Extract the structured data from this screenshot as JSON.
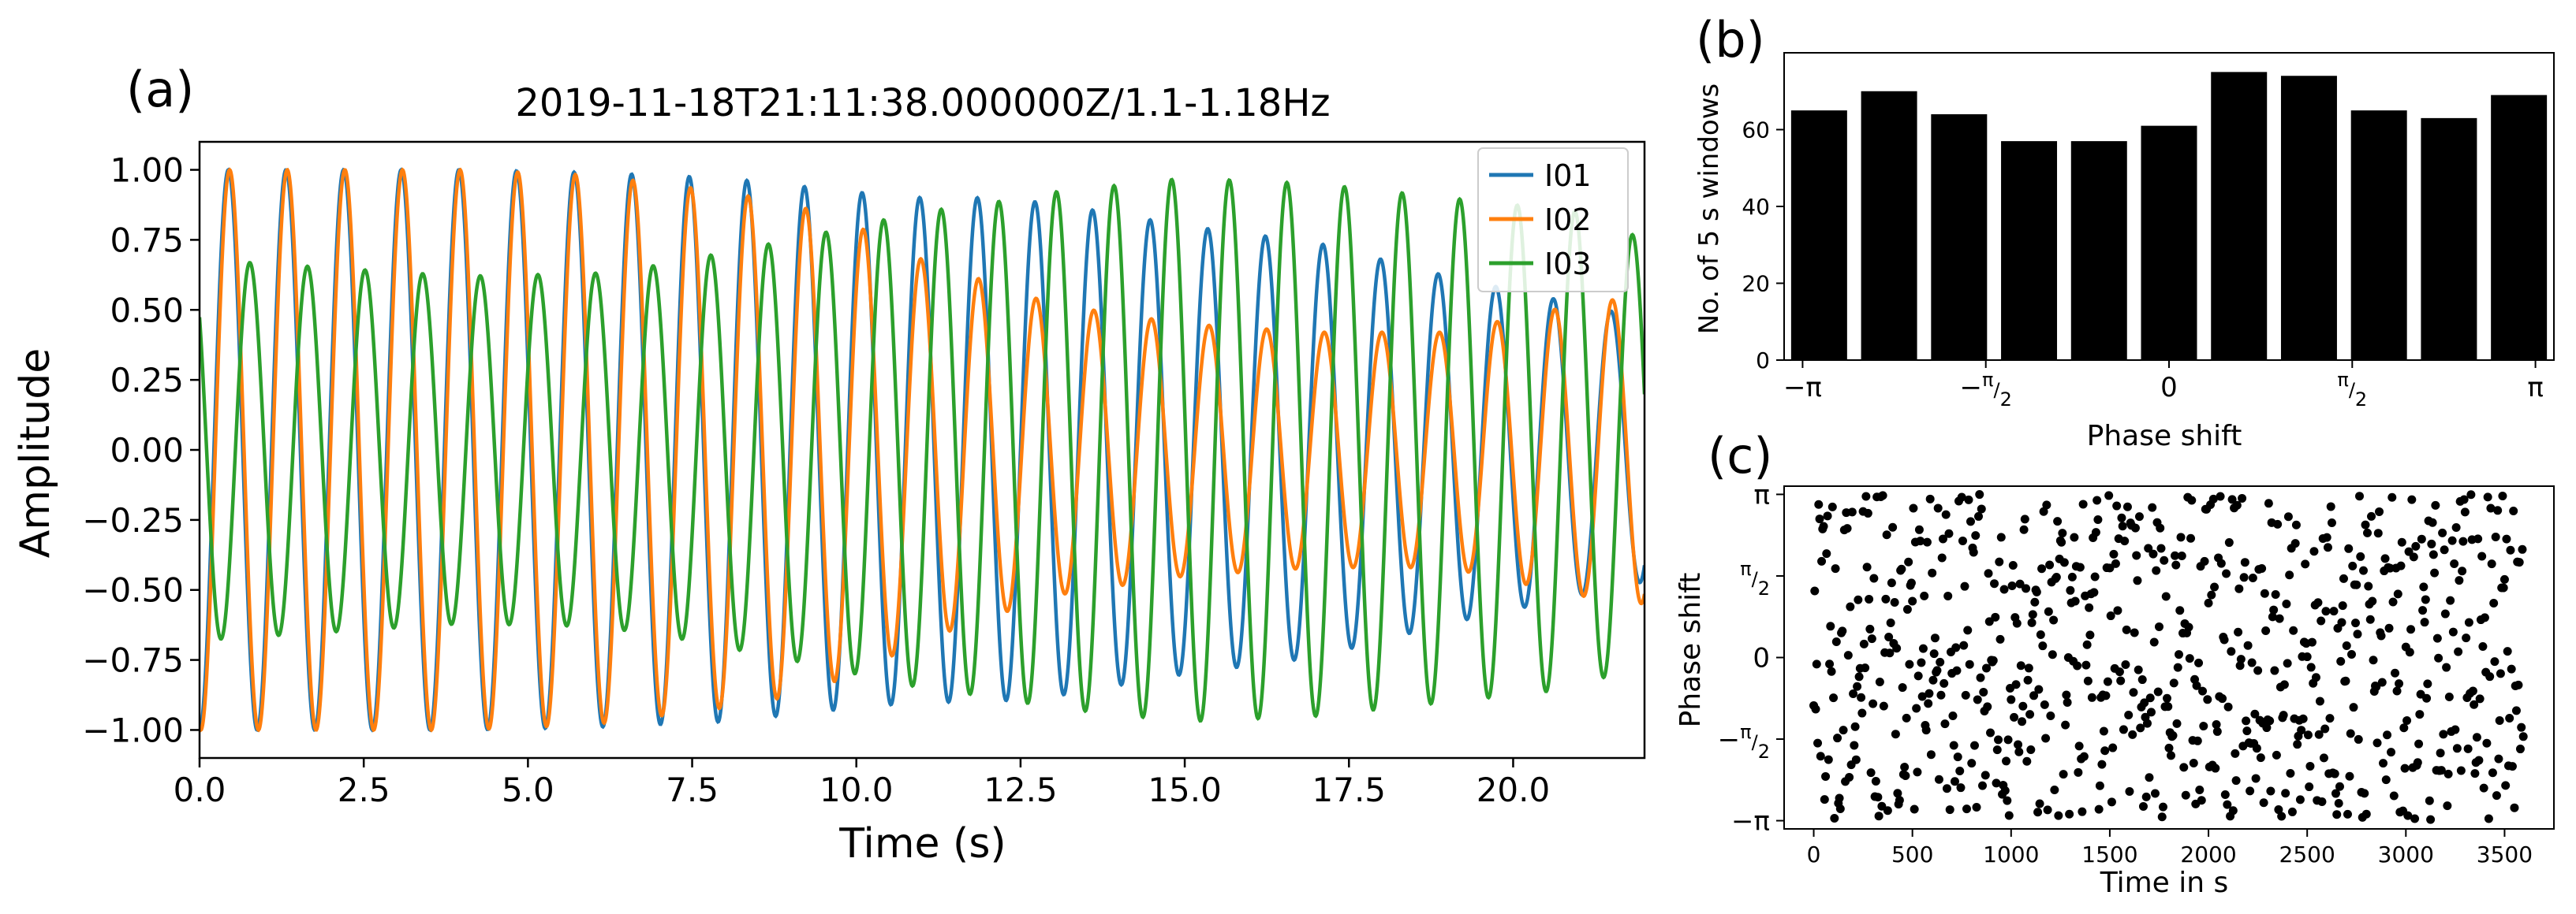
{
  "panels": {
    "a": {
      "letter": "(a)"
    },
    "b": {
      "letter": "(b)"
    },
    "c": {
      "letter": "(c)"
    }
  },
  "chart_data": [
    {
      "id": "a",
      "type": "line",
      "title": "2019-11-18T21:11:38.000000Z/1.1-1.18Hz",
      "xlabel": "Time (s)",
      "ylabel": "Amplitude",
      "xlim": [
        0,
        22
      ],
      "ylim": [
        -1.1,
        1.1
      ],
      "xticks": [
        0,
        2.5,
        5,
        7.5,
        10,
        12.5,
        15,
        17.5,
        20
      ],
      "xtick_labels": [
        "0.0",
        "2.5",
        "5.0",
        "7.5",
        "10.0",
        "12.5",
        "15.0",
        "17.5",
        "20.0"
      ],
      "yticks": [
        1,
        0.75,
        0.5,
        0.25,
        0,
        -0.25,
        -0.5,
        -0.75,
        -1
      ],
      "ytick_labels": [
        "1.00",
        "0.75",
        "0.50",
        "0.25",
        "0.00",
        "−0.25",
        "−0.50",
        "−0.75",
        "−1.00"
      ],
      "grid": false,
      "legend_position": "top-right",
      "colors": {
        "I01": "#1f77b4",
        "I02": "#ff7f0e",
        "I03": "#2ca02c"
      },
      "series": [
        {
          "name": "I01",
          "color": "#1f77b4",
          "frequency_hz": 1.14,
          "phase_rad": 3.1416,
          "envelope": {
            "t": [
              0,
              2,
              4,
              6,
              8,
              10,
              11,
              12,
              13,
              15,
              17,
              19,
              21,
              22
            ],
            "amp": [
              1.0,
              1.0,
              1.0,
              0.99,
              0.97,
              0.92,
              0.9,
              0.9,
              0.88,
              0.8,
              0.74,
              0.62,
              0.52,
              0.47
            ]
          }
        },
        {
          "name": "I02",
          "color": "#ff7f0e",
          "frequency_hz": 1.14,
          "phase_rad": 3.0,
          "envelope": {
            "t": [
              0,
              4,
              6,
              8,
              9,
              10,
              11,
              12,
              13,
              15,
              17,
              19,
              21,
              22
            ],
            "amp": [
              1.0,
              1.0,
              0.98,
              0.92,
              0.88,
              0.8,
              0.68,
              0.6,
              0.52,
              0.45,
              0.42,
              0.42,
              0.52,
              0.55
            ]
          }
        },
        {
          "name": "I03",
          "color": "#2ca02c",
          "frequency_hz": 1.14,
          "phase_rad": 0.8,
          "envelope": {
            "t": [
              0,
              2,
              4,
              6,
              7,
              9,
              10,
              11,
              12,
              13,
              15,
              17,
              19,
              21,
              22
            ],
            "amp": [
              0.68,
              0.65,
              0.62,
              0.63,
              0.66,
              0.75,
              0.8,
              0.85,
              0.88,
              0.92,
              0.97,
              0.95,
              0.9,
              0.85,
              0.75
            ]
          }
        }
      ]
    },
    {
      "id": "b",
      "type": "bar",
      "xlabel": "Phase shift",
      "ylabel": "No. of 5 s windows",
      "xlim": [
        -3.3,
        3.3
      ],
      "ylim": [
        0,
        80
      ],
      "yticks": [
        0,
        20,
        40,
        60
      ],
      "ytick_labels": [
        "0",
        "20",
        "40",
        "60"
      ],
      "xticks": [
        -3.1416,
        -1.5708,
        0,
        1.5708,
        3.1416
      ],
      "xtick_labels": [
        "−π",
        "−π/2",
        "0",
        "π/2",
        "π"
      ],
      "bar_color": "#000000",
      "bin_centers": [
        -3.0,
        -2.4,
        -1.8,
        -1.2,
        -0.6,
        0.0,
        0.6,
        1.2,
        1.8,
        2.4,
        3.0
      ],
      "values": [
        65,
        70,
        64,
        57,
        57,
        61,
        75,
        74,
        65,
        63,
        69
      ]
    },
    {
      "id": "c",
      "type": "scatter",
      "xlabel": "Time in s",
      "ylabel": "Phase shift",
      "xlim": [
        -150,
        3750
      ],
      "ylim": [
        -3.3,
        3.3
      ],
      "xticks": [
        0,
        500,
        1000,
        1500,
        2000,
        2500,
        3000,
        3500
      ],
      "xtick_labels": [
        "0",
        "500",
        "1000",
        "1500",
        "2000",
        "2500",
        "3000",
        "3500"
      ],
      "yticks": [
        3.1416,
        1.5708,
        0,
        -1.5708,
        -3.1416
      ],
      "ytick_labels": [
        "π",
        "π/2",
        "0",
        "−π/2",
        "−π"
      ],
      "marker_color": "#000000",
      "time_start": 0,
      "time_step": 5,
      "point_count": 720
    }
  ]
}
